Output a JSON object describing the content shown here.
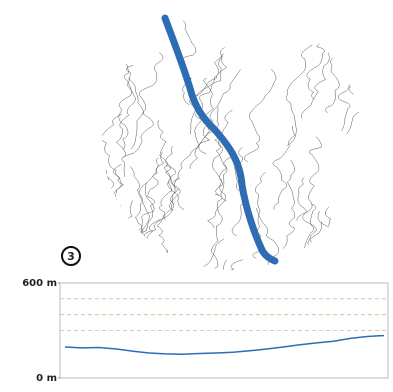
{
  "chart_data": {
    "type": "line",
    "annotation": "3",
    "values": [
      196,
      190,
      193,
      184,
      170,
      158,
      152,
      150,
      155,
      158,
      163,
      172,
      183,
      196,
      210,
      222,
      232,
      250,
      262,
      268
    ],
    "color": "#2e6db4",
    "ylim": [
      0,
      600
    ],
    "yticks": [
      {
        "value": 0,
        "label": "0 m"
      },
      {
        "value": 600,
        "label": "600 m"
      }
    ],
    "grid_values": [
      300,
      400,
      500
    ]
  }
}
